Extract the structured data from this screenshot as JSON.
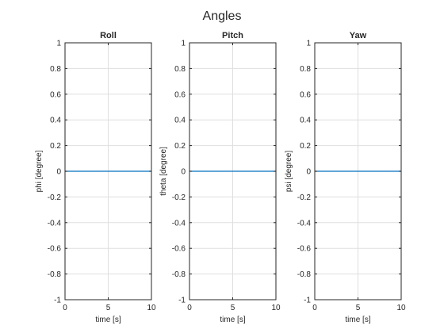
{
  "figure_title": "Angles",
  "chart_data": [
    {
      "type": "line",
      "title": "Roll",
      "xlabel": "time [s]",
      "ylabel": "phi [degree]",
      "xlim": [
        0,
        10
      ],
      "ylim": [
        -1,
        1
      ],
      "xticks": [
        0,
        5,
        10
      ],
      "xtick_labels": [
        "0",
        "5",
        "10"
      ],
      "yticks": [
        -1,
        -0.8,
        -0.6,
        -0.4,
        -0.2,
        0,
        0.2,
        0.4,
        0.6,
        0.8,
        1
      ],
      "ytick_labels": [
        "-1",
        "-0.8",
        "-0.6",
        "-0.4",
        "-0.2",
        "0",
        "0.2",
        "0.4",
        "0.6",
        "0.8",
        "1"
      ],
      "grid": true,
      "series": [
        {
          "x": [
            0,
            10
          ],
          "y": [
            0,
            0
          ],
          "color": "#0072bd"
        }
      ]
    },
    {
      "type": "line",
      "title": "Pitch",
      "xlabel": "time [s]",
      "ylabel": "theta [degree]",
      "xlim": [
        0,
        10
      ],
      "ylim": [
        -1,
        1
      ],
      "xticks": [
        0,
        5,
        10
      ],
      "xtick_labels": [
        "0",
        "5",
        "10"
      ],
      "yticks": [
        -1,
        -0.8,
        -0.6,
        -0.4,
        -0.2,
        0,
        0.2,
        0.4,
        0.6,
        0.8,
        1
      ],
      "ytick_labels": [
        "-1",
        "-0.8",
        "-0.6",
        "-0.4",
        "-0.2",
        "0",
        "0.2",
        "0.4",
        "0.6",
        "0.8",
        "1"
      ],
      "grid": true,
      "series": [
        {
          "x": [
            0,
            10
          ],
          "y": [
            0,
            0
          ],
          "color": "#0072bd"
        }
      ]
    },
    {
      "type": "line",
      "title": "Yaw",
      "xlabel": "time [s]",
      "ylabel": "psi [degree]",
      "xlim": [
        0,
        10
      ],
      "ylim": [
        -1,
        1
      ],
      "xticks": [
        0,
        5,
        10
      ],
      "xtick_labels": [
        "0",
        "5",
        "10"
      ],
      "yticks": [
        -1,
        -0.8,
        -0.6,
        -0.4,
        -0.2,
        0,
        0.2,
        0.4,
        0.6,
        0.8,
        1
      ],
      "ytick_labels": [
        "-1",
        "-0.8",
        "-0.6",
        "-0.4",
        "-0.2",
        "0",
        "0.2",
        "0.4",
        "0.6",
        "0.8",
        "1"
      ],
      "grid": true,
      "series": [
        {
          "x": [
            0,
            10
          ],
          "y": [
            0,
            0
          ],
          "color": "#0072bd"
        }
      ]
    }
  ]
}
